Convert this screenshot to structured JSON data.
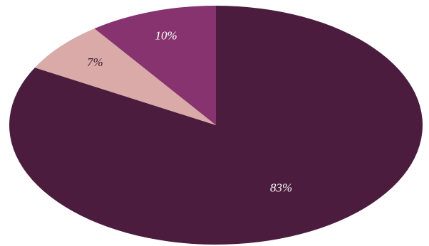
{
  "chart_data": {
    "type": "pie",
    "values": [
      83,
      7,
      10
    ],
    "value_labels": [
      "83%",
      "7%",
      "10%"
    ],
    "colors": [
      "#4b1c3d",
      "#d9aaa8",
      "#86336f"
    ],
    "start": "top",
    "direction": "clockwise"
  }
}
